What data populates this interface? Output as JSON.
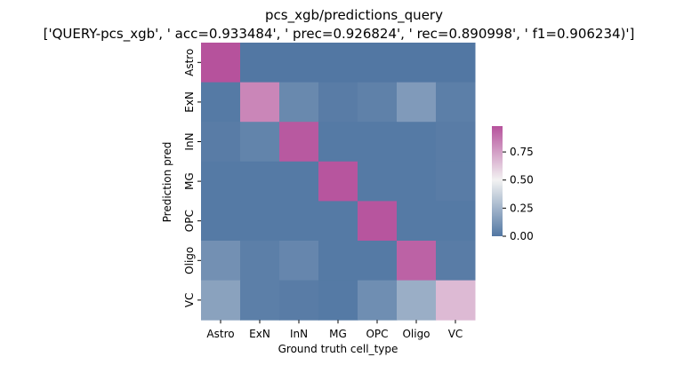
{
  "chart_data": {
    "type": "heatmap",
    "title": "pcs_xgb/predictions_query",
    "subtitle": "['QUERY-pcs_xgb', ' acc=0.933484', '  prec=0.926824', ' rec=0.890998', ' f1=0.906234)']",
    "xlabel": "Ground truth cell_type",
    "ylabel": "Prediction pred",
    "x_categories": [
      "Astro",
      "ExN",
      "InN",
      "MG",
      "OPC",
      "Oligo",
      "VC"
    ],
    "y_categories": [
      "Astro",
      "ExN",
      "InN",
      "MG",
      "OPC",
      "Oligo",
      "VC"
    ],
    "values": [
      [
        0.98,
        0.0,
        0.0,
        0.0,
        0.0,
        0.0,
        0.0
      ],
      [
        0.01,
        0.82,
        0.07,
        0.02,
        0.04,
        0.14,
        0.03
      ],
      [
        0.02,
        0.05,
        0.96,
        0.01,
        0.01,
        0.01,
        0.02
      ],
      [
        0.01,
        0.01,
        0.01,
        0.97,
        0.01,
        0.01,
        0.02
      ],
      [
        0.01,
        0.01,
        0.01,
        0.01,
        0.97,
        0.01,
        0.01
      ],
      [
        0.1,
        0.03,
        0.06,
        0.01,
        0.01,
        0.93,
        0.02
      ],
      [
        0.17,
        0.03,
        0.02,
        0.01,
        0.09,
        0.22,
        0.66
      ]
    ],
    "colorbar": {
      "ticks": [
        0.0,
        0.25,
        0.5,
        0.75
      ],
      "tick_labels": [
        "0.00",
        "0.25",
        "0.50",
        "0.75"
      ],
      "range": [
        0,
        0.98
      ]
    },
    "colors": {
      "low": "#5277a3",
      "mid": "#f2f2f2",
      "high": "#b6529c"
    },
    "grid": false
  }
}
